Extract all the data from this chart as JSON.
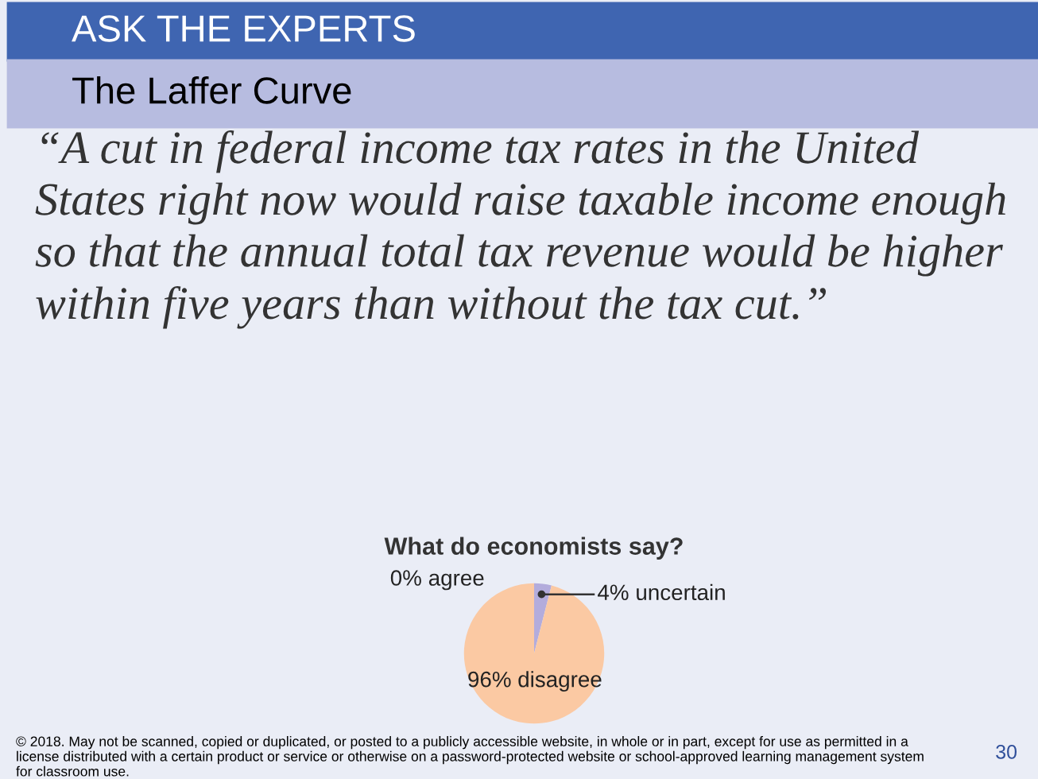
{
  "chart_data": {
    "type": "pie",
    "title": "What do economists say?",
    "categories": [
      "agree",
      "uncertain",
      "disagree"
    ],
    "values": [
      0,
      4,
      96
    ],
    "colors": [
      "#9fa3d6",
      "#b3acdc",
      "#fbc9a3"
    ],
    "value_labels": [
      "0%",
      "4%",
      "96%"
    ],
    "legend": false,
    "annotations": [
      "ASK THE EXPERTS",
      "The Laffer Curve",
      "“A cut in federal income tax rates in the United States right now would raise taxable income enough so that the annual total tax revenue would be higher within five years than without the tax cut.”",
      "© 2018. May not be scanned, copied or duplicated, or posted to a publicly accessible website, in whole or in part, except for use as permitted in a license distributed with a certain product or service or otherwise on a password-protected website or school-approved learning management system for classroom use.",
      "30"
    ]
  }
}
